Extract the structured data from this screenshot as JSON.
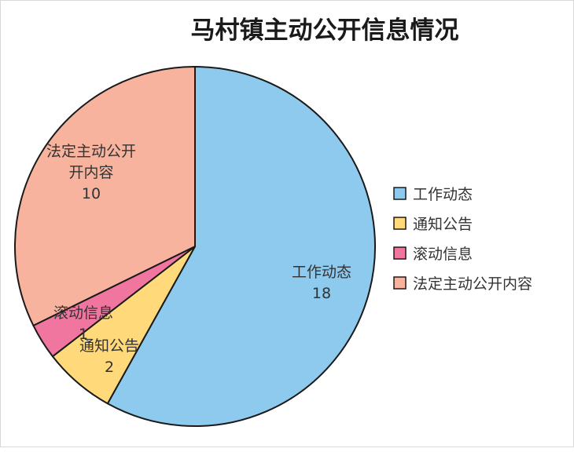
{
  "chart_data": {
    "type": "pie",
    "title": "马村镇主动公开信息情况",
    "categories": [
      "工作动态",
      "通知公告",
      "滚动信息",
      "法定主动公开内容"
    ],
    "values": [
      18,
      2,
      1,
      10
    ],
    "colors": [
      "#8EC9EE",
      "#FFD97A",
      "#F076A0",
      "#F7B39E"
    ],
    "stroke": "#1a1a1a",
    "legend": "right",
    "start_angle_deg": 0,
    "direction": "clockwise",
    "slice_labels": [
      {
        "lines": [
          "工作动态",
          "18"
        ]
      },
      {
        "lines": [
          "通知公告",
          "2"
        ]
      },
      {
        "lines": [
          "滚动信息",
          "1"
        ]
      },
      {
        "lines": [
          "法定主动公开",
          "开内容",
          "10"
        ]
      }
    ]
  }
}
